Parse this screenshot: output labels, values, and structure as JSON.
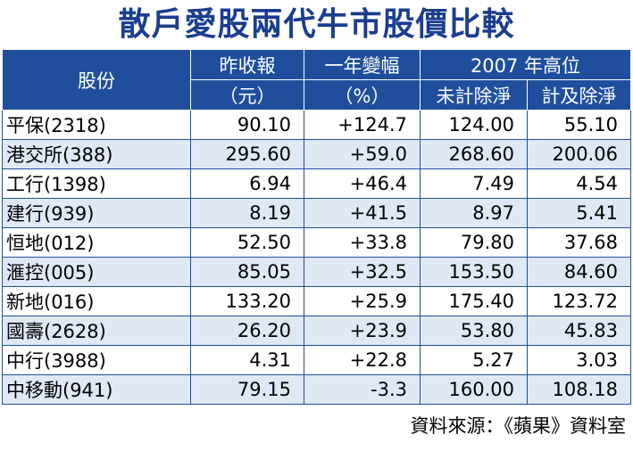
{
  "title": "散戶愛股兩代牛市股價比較",
  "header": {
    "stock": "股份",
    "close": "昨收報",
    "close_unit": "（元）",
    "change": "一年變幅",
    "change_unit": "（%）",
    "high": "2007 年高位",
    "high_ex": "未計除淨",
    "high_incl": "計及除淨"
  },
  "table": {
    "rows": [
      [
        "平保(2318)",
        "90.10",
        "+124.7",
        "124.00",
        "55.10"
      ],
      [
        "港交所(388)",
        "295.60",
        "+59.0",
        "268.60",
        "200.06"
      ],
      [
        "工行(1398)",
        "6.94",
        "+46.4",
        "7.49",
        "4.54"
      ],
      [
        "建行(939)",
        "8.19",
        "+41.5",
        "8.97",
        "5.41"
      ],
      [
        "恒地(012)",
        "52.50",
        "+33.8",
        "79.80",
        "37.68"
      ],
      [
        "滙控(005)",
        "85.05",
        "+32.5",
        "153.50",
        "84.60"
      ],
      [
        "新地(016)",
        "133.20",
        "+25.9",
        "175.40",
        "123.72"
      ],
      [
        "國壽(2628)",
        "26.20",
        "+23.9",
        "53.80",
        "45.83"
      ],
      [
        "中行(3988)",
        "4.31",
        "+22.8",
        "5.27",
        "3.03"
      ],
      [
        "中移動(941)",
        "79.15",
        "-3.3",
        "160.00",
        "108.18"
      ]
    ]
  },
  "source": "資料來源：《蘋果》資料室"
}
